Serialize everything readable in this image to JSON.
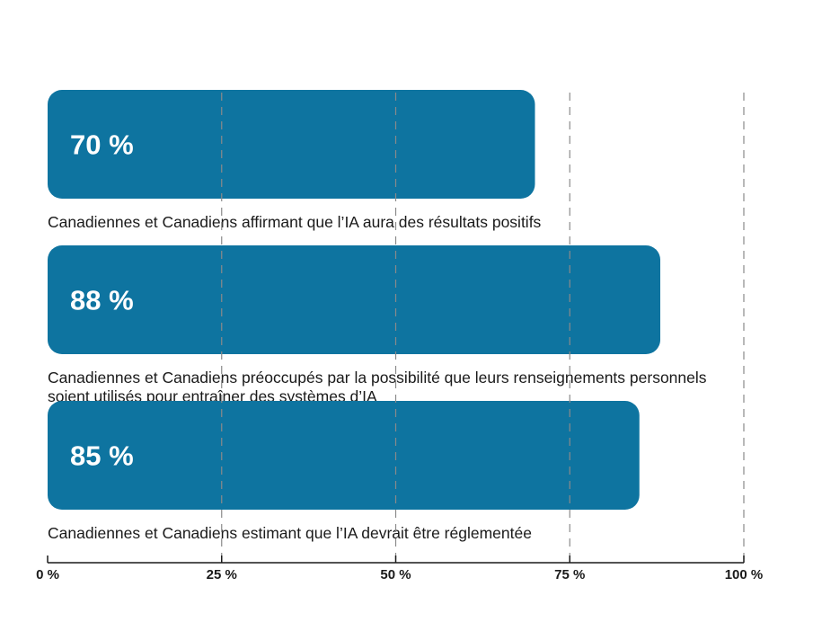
{
  "chart_data": {
    "type": "bar",
    "orientation": "horizontal",
    "xlim": [
      0,
      100
    ],
    "grid": true,
    "tick_values": [
      0,
      25,
      50,
      75,
      100
    ],
    "tick_labels": [
      "0 %",
      "25 %",
      "50 %",
      "75 %",
      "100 %"
    ],
    "categories": [
      "Canadiennes et Canadiens affirmant que l’IA aura des résultats positifs",
      "Canadiennes et Canadiens préoccupés par la possibilité que leurs renseignements personnels soient utilisés pour entraîner des systèmes d’IA",
      "Canadiennes et Canadiens estimant que l’IA devrait être réglementée"
    ],
    "values": [
      70,
      88,
      85
    ],
    "value_labels": [
      "70 %",
      "88 %",
      "85 %"
    ],
    "bar_color": "#0e74a0",
    "gridline_color": "#8a8a8a"
  }
}
